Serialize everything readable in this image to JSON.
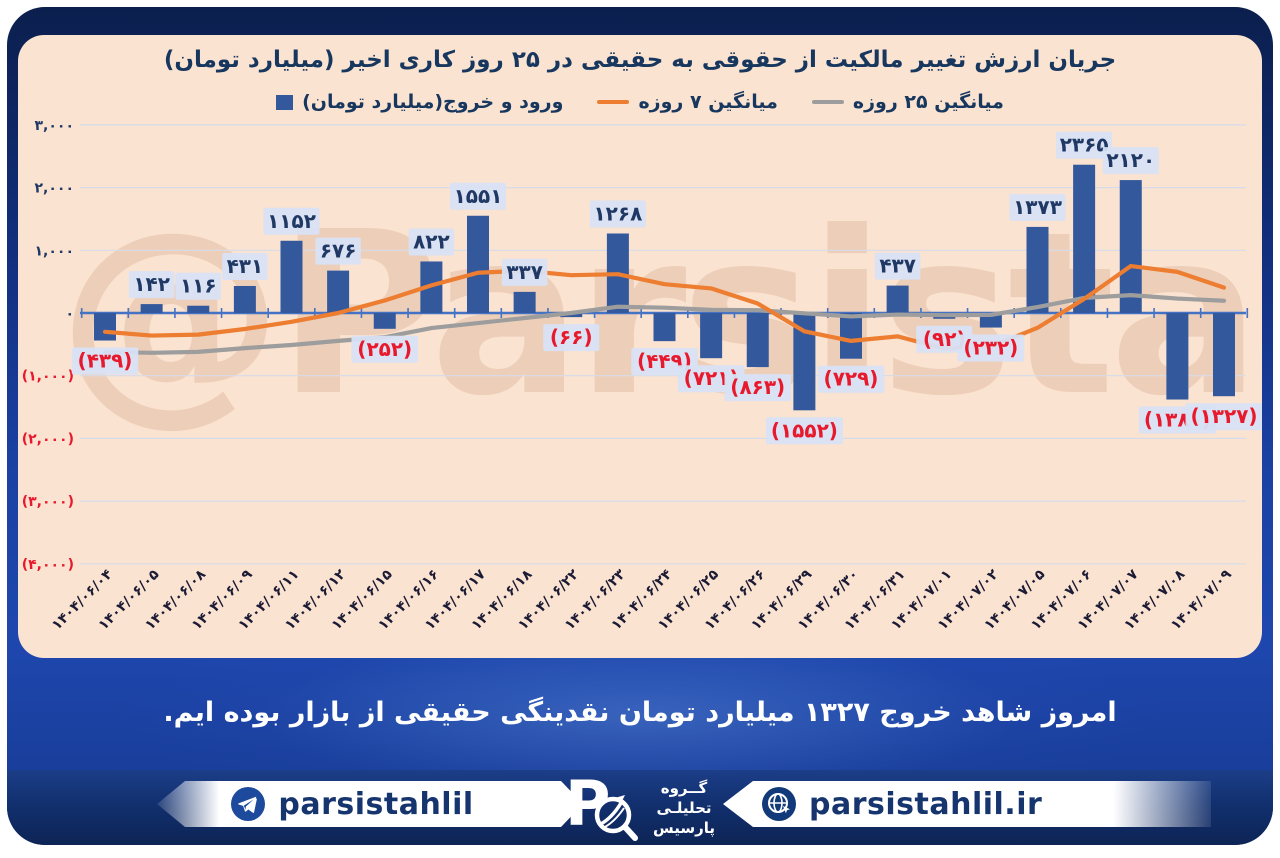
{
  "title": "جریان ارزش تغییر مالکیت از حقوقی به حقیقی در ۲۵ روز کاری اخیر (میلیارد تومان)",
  "watermark": "@Parsistahlil",
  "announcement": "امروز شاهد خروج ۱۳۲۷ میلیارد تومان نقدینگی حقیقی از بازار بوده ایم.",
  "legend": [
    {
      "label": "ورود و خروج(میلیارد تومان)",
      "marker": "square",
      "color": "#33589C"
    },
    {
      "label": "میانگین ۷ روزه",
      "marker": "line",
      "color": "#ED7D31"
    },
    {
      "label": "میانگین ۲۵ روزه",
      "marker": "line",
      "color": "#9D9D9D"
    }
  ],
  "chart_data": {
    "type": "bar",
    "title": "جریان ارزش تغییر مالکیت از حقوقی به حقیقی در ۲۵ روز کاری اخیر (میلیارد تومان)",
    "categories": [
      "۱۴۰۴/۰۶/۰۴",
      "۱۴۰۴/۰۶/۰۵",
      "۱۴۰۴/۰۶/۰۸",
      "۱۴۰۴/۰۶/۰۹",
      "۱۴۰۴/۰۶/۱۱",
      "۱۴۰۴/۰۶/۱۲",
      "۱۴۰۴/۰۶/۱۵",
      "۱۴۰۴/۰۶/۱۶",
      "۱۴۰۴/۰۶/۱۷",
      "۱۴۰۴/۰۶/۱۸",
      "۱۴۰۴/۰۶/۲۲",
      "۱۴۰۴/۰۶/۲۳",
      "۱۴۰۴/۰۶/۲۴",
      "۱۴۰۴/۰۶/۲۵",
      "۱۴۰۴/۰۶/۲۶",
      "۱۴۰۴/۰۶/۲۹",
      "۱۴۰۴/۰۶/۳۰",
      "۱۴۰۴/۰۶/۳۱",
      "۱۴۰۴/۰۷/۰۱",
      "۱۴۰۴/۰۷/۰۲",
      "۱۴۰۴/۰۷/۰۵",
      "۱۴۰۴/۰۷/۰۶",
      "۱۴۰۴/۰۷/۰۷",
      "۱۴۰۴/۰۷/۰۸",
      "۱۴۰۴/۰۷/۰۹"
    ],
    "series": [
      {
        "name": "ورود و خروج(میلیارد تومان)",
        "type": "bar",
        "color": "#33589C",
        "values": [
          -439,
          142,
          116,
          431,
          1152,
          676,
          -252,
          822,
          1551,
          337,
          -66,
          1268,
          -449,
          -721,
          -863,
          -1552,
          -729,
          437,
          -92,
          -232,
          1373,
          2365,
          2120,
          -1380,
          -1327
        ],
        "labels": [
          "(۴۳۹)",
          "۱۴۲",
          "۱۱۶",
          "۴۳۱",
          "۱۱۵۲",
          "۶۷۶",
          "(۲۵۲)",
          "۸۲۲",
          "۱۵۵۱",
          "۳۳۷",
          "(۶۶)",
          "۱۲۶۸",
          "(۴۴۹)",
          "(۷۲۱)",
          "(۸۶۳)",
          "(۱۵۵۲)",
          "(۷۲۹)",
          "۴۳۷",
          "(۹۲)",
          "(۲۳۲)",
          "۱۳۷۳",
          "۲۳۶۵",
          "۲۱۲۰",
          "(۱۳۸۰)",
          "(۱۳۲۷)"
        ]
      },
      {
        "name": "میانگین ۷ روزه",
        "type": "line",
        "color": "#ED7D31",
        "values": [
          -300,
          -360,
          -345,
          -255,
          -140,
          0,
          200,
          441,
          642,
          674,
          603,
          619,
          459,
          392,
          151,
          -292,
          -445,
          -373,
          -567,
          -536,
          -237,
          224,
          749,
          656,
          404
        ]
      },
      {
        "name": "میانگین ۲۵ روزه",
        "type": "line",
        "color": "#9D9D9D",
        "values": [
          -620,
          -635,
          -620,
          -560,
          -510,
          -445,
          -385,
          -240,
          -160,
          -80,
          0,
          100,
          85,
          50,
          45,
          -5,
          -55,
          -25,
          -35,
          -30,
          95,
          240,
          285,
          230,
          195
        ]
      }
    ],
    "ylim": [
      -4000,
      3000
    ],
    "yticks": [
      {
        "value": 3000,
        "label": "۳,۰۰۰"
      },
      {
        "value": 2000,
        "label": "۲,۰۰۰"
      },
      {
        "value": 1000,
        "label": "۱,۰۰۰"
      },
      {
        "value": 0,
        "label": "۰"
      },
      {
        "value": -1000,
        "label": "(۱,۰۰۰)"
      },
      {
        "value": -2000,
        "label": "(۲,۰۰۰)"
      },
      {
        "value": -3000,
        "label": "(۳,۰۰۰)"
      },
      {
        "value": -4000,
        "label": "(۴,۰۰۰)"
      }
    ],
    "grid": true,
    "legend_position": "top",
    "colors": {
      "positive_label": "#1F3864",
      "negative_label": "#E8192C",
      "label_box": "#D8E2F4",
      "axis": "#4472C4",
      "gridline": "#D6DCEA"
    }
  },
  "footer": {
    "telegram_handle": "parsistahlil",
    "website": "parsistahlil.ir",
    "logo_letter": "P",
    "brand_lines": [
      "گــروه",
      "تحلیلـی",
      "پارسیس"
    ]
  }
}
